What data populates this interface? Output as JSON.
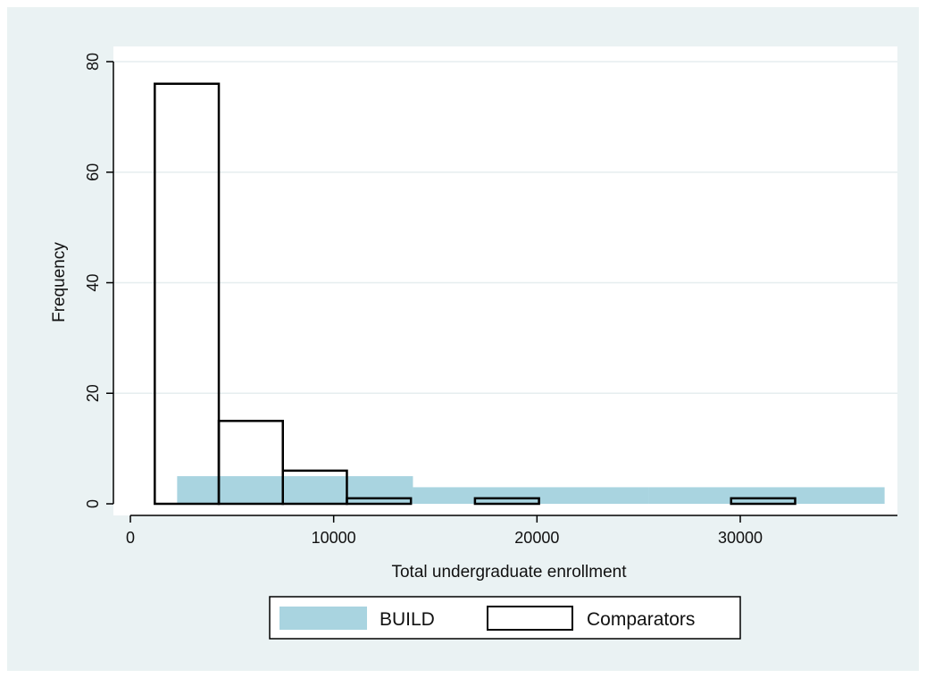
{
  "chart_data": {
    "type": "bar",
    "subtype": "overlaid-histogram",
    "title": "",
    "xlabel": "Total undergraduate enrollment",
    "ylabel": "Frequency",
    "xlim": [
      -500,
      38500
    ],
    "ylim": [
      0,
      80
    ],
    "xticks": [
      0,
      10000,
      20000,
      30000
    ],
    "xtick_labels": [
      "0",
      "10000",
      "20000",
      "30000"
    ],
    "yticks": [
      0,
      20,
      40,
      60,
      80
    ],
    "ytick_labels": [
      "0",
      "20",
      "40",
      "60",
      "80"
    ],
    "grid": true,
    "legend_position": "bottom",
    "series": [
      {
        "name": "BUILD",
        "color": "#a9d4e0",
        "style": "filled",
        "bins": [
          {
            "x0": 2300,
            "x1": 13900,
            "value": 5
          },
          {
            "x0": 13900,
            "x1": 25500,
            "value": 3
          },
          {
            "x0": 25500,
            "x1": 37100,
            "value": 3
          }
        ]
      },
      {
        "name": "Comparators",
        "color": "#000000",
        "style": "outline",
        "bins": [
          {
            "x0": 1200,
            "x1": 4350,
            "value": 76
          },
          {
            "x0": 4350,
            "x1": 7500,
            "value": 15
          },
          {
            "x0": 7500,
            "x1": 10650,
            "value": 6
          },
          {
            "x0": 10650,
            "x1": 13800,
            "value": 1
          },
          {
            "x0": 13800,
            "x1": 16950,
            "value": 0
          },
          {
            "x0": 16950,
            "x1": 20100,
            "value": 1
          },
          {
            "x0": 20100,
            "x1": 23250,
            "value": 0
          },
          {
            "x0": 23250,
            "x1": 26400,
            "value": 0
          },
          {
            "x0": 26400,
            "x1": 29550,
            "value": 0
          },
          {
            "x0": 29550,
            "x1": 32700,
            "value": 1
          }
        ]
      }
    ]
  }
}
